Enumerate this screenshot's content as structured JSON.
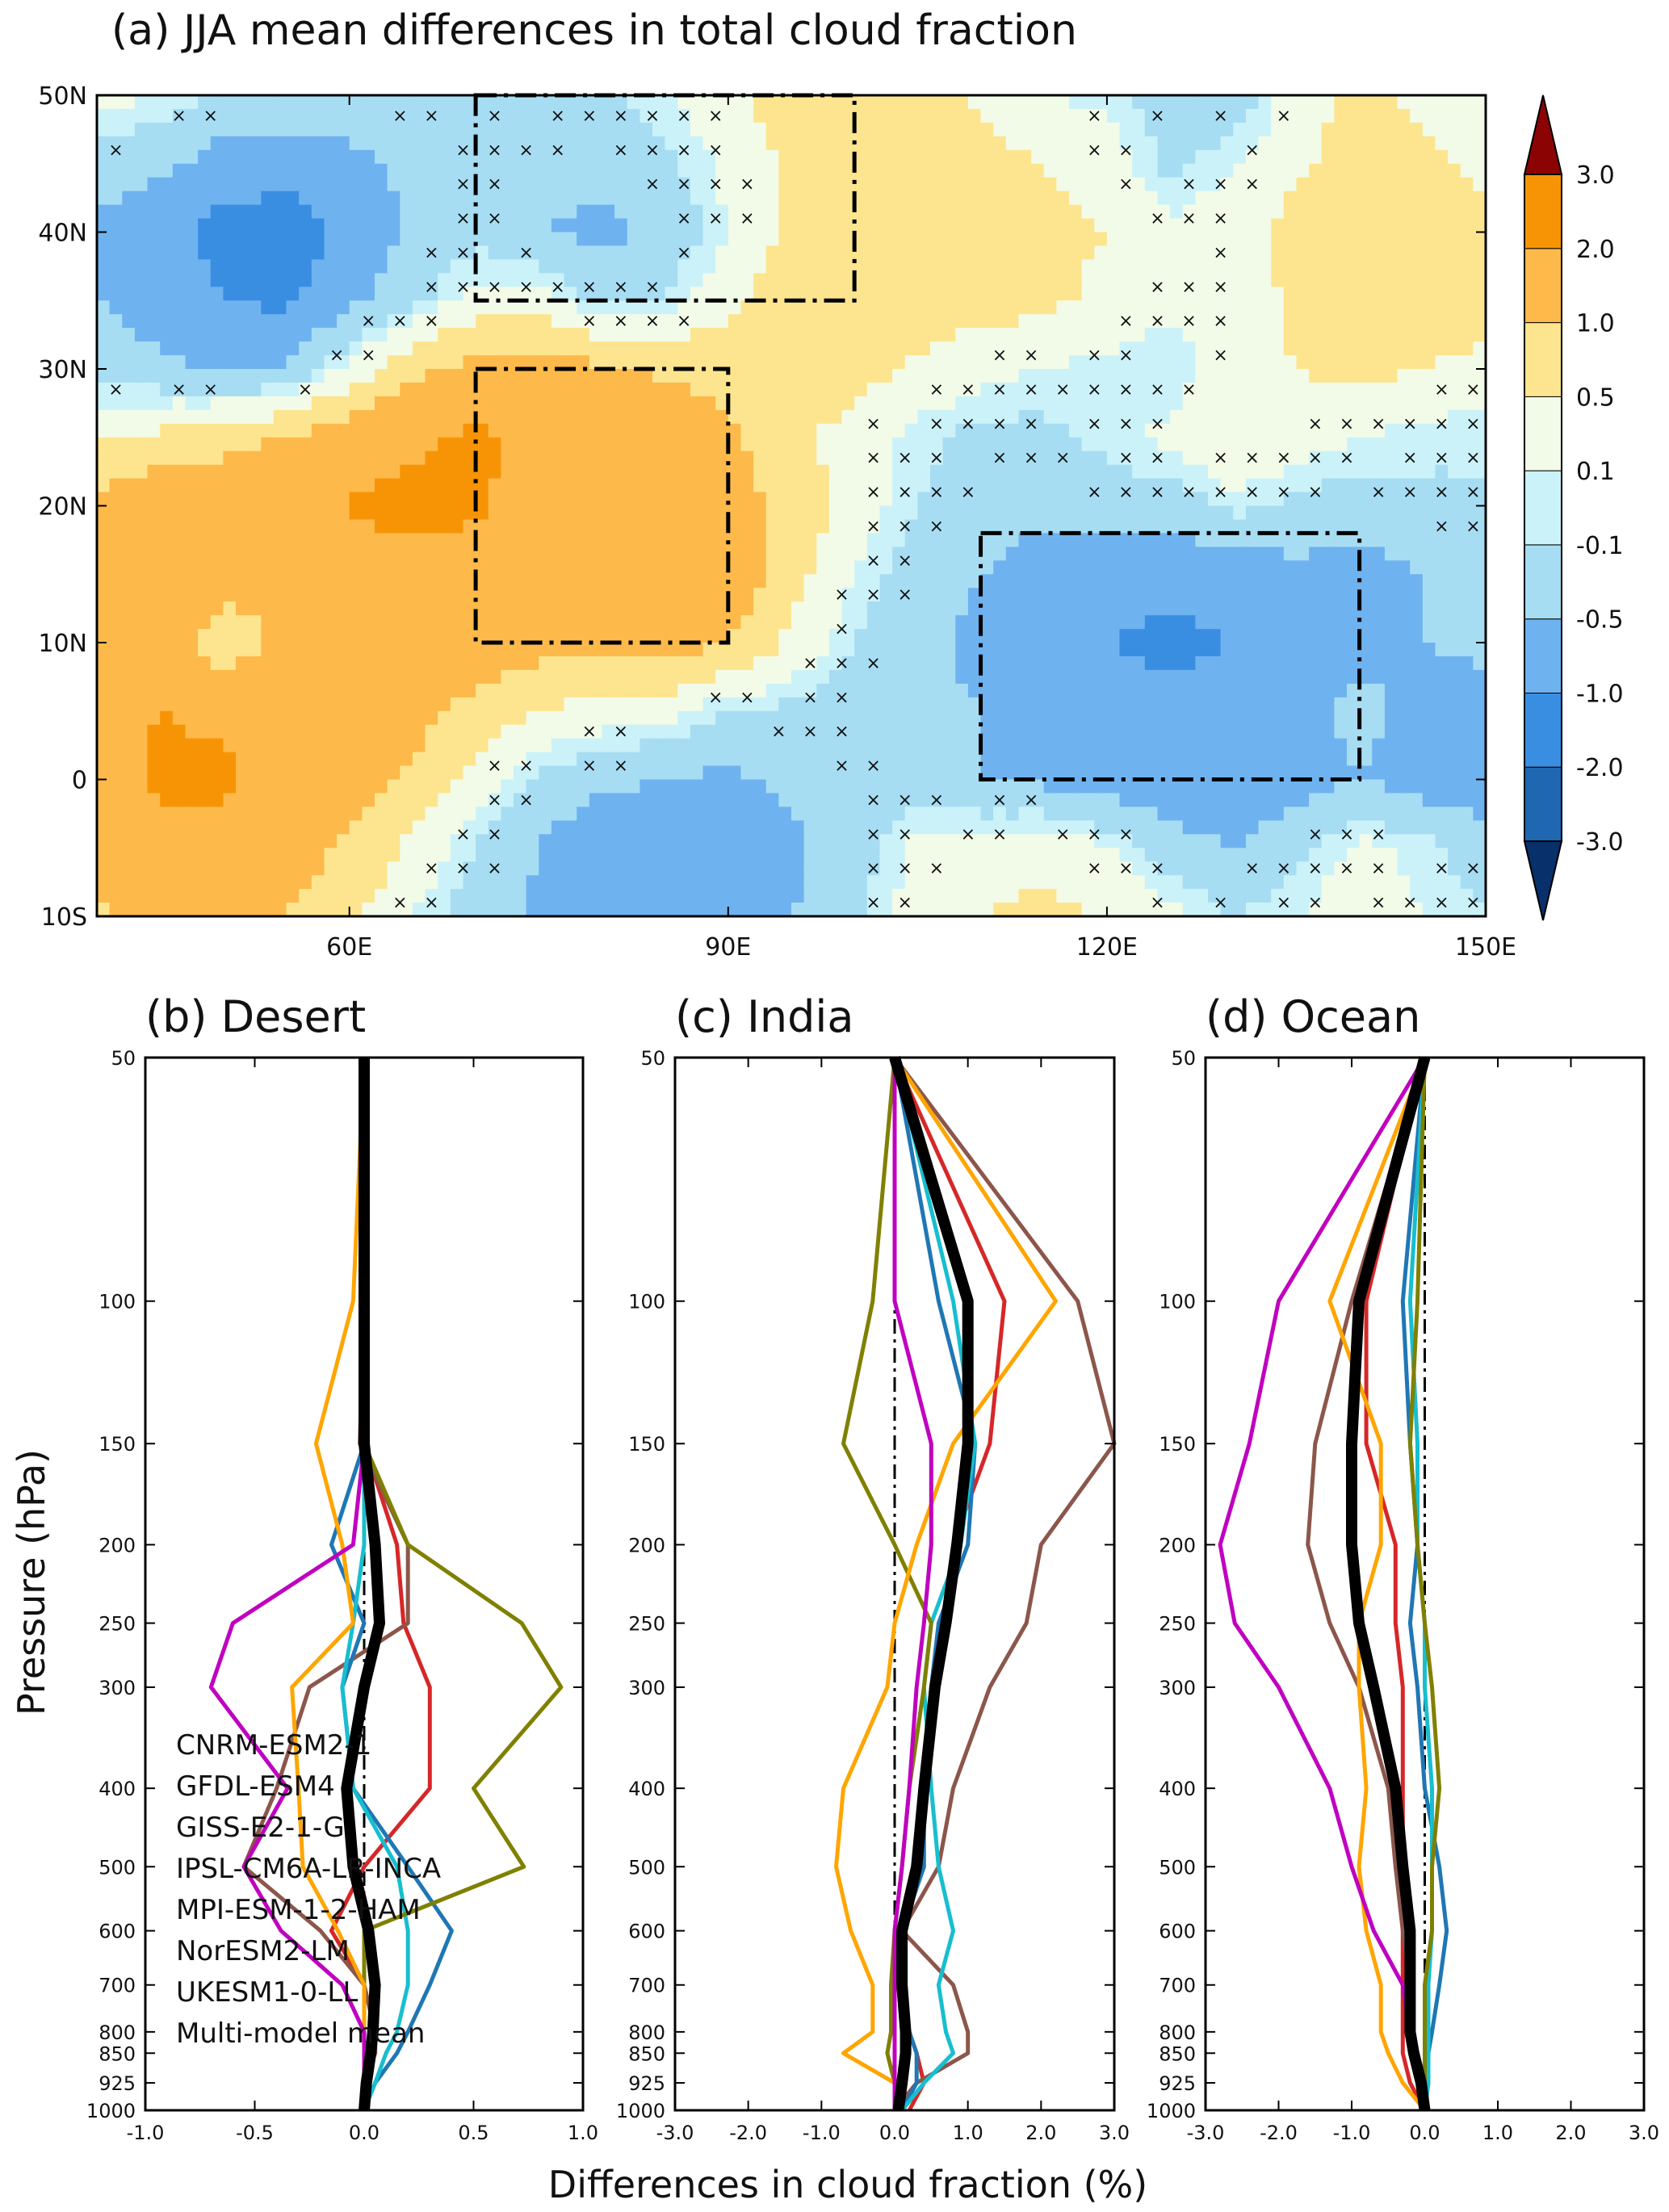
{
  "chart_data": [
    {
      "type": "heatmap",
      "title": "(a) JJA mean differences in total cloud fraction",
      "xlim": [
        40,
        150
      ],
      "ylim": [
        -10,
        50
      ],
      "xticks": [
        60,
        90,
        120,
        150
      ],
      "xtick_labels": [
        "60E",
        "90E",
        "120E",
        "150E"
      ],
      "yticks": [
        -10,
        0,
        10,
        20,
        30,
        40,
        50
      ],
      "ytick_labels": [
        "10S",
        "0",
        "10N",
        "20N",
        "30N",
        "40N",
        "50N"
      ],
      "colorbar": {
        "levels": [
          -3.0,
          -2.0,
          -1.0,
          -0.5,
          -0.1,
          0.1,
          0.5,
          1.0,
          2.0,
          3.0
        ],
        "labels": [
          "-3.0",
          "-2.0",
          "-1.0",
          "-0.5",
          "-0.1",
          "0.1",
          "0.5",
          "1.0",
          "2.0",
          "3.0"
        ],
        "colors": [
          "#08306b",
          "#1f67b1",
          "#3a8ee2",
          "#6fb2f0",
          "#a7ddf3",
          "#cbf2f8",
          "#f2fbe8",
          "#fde58f",
          "#fdb94a",
          "#f79406",
          "#fd4a05",
          "#d81a10",
          "#8c0303"
        ]
      },
      "boxes": [
        {
          "name": "Desert",
          "lon": [
            70,
            100
          ],
          "lat": [
            35,
            50
          ]
        },
        {
          "name": "India",
          "lon": [
            70,
            90
          ],
          "lat": [
            10,
            30
          ]
        },
        {
          "name": "Ocean",
          "lon": [
            110,
            140
          ],
          "lat": [
            0,
            18
          ]
        }
      ],
      "field": {
        "lon": [
          40,
          45,
          50,
          55,
          60,
          65,
          70,
          75,
          80,
          85,
          90,
          95,
          100,
          105,
          110,
          115,
          120,
          125,
          130,
          135,
          140,
          145,
          150
        ],
        "lat": [
          50,
          45,
          40,
          35,
          30,
          25,
          20,
          15,
          10,
          5,
          0,
          -5,
          -10
        ],
        "values": [
          [
            0.2,
            0.1,
            -0.2,
            -0.2,
            -0.3,
            -0.2,
            -0.1,
            -0.1,
            -0.2,
            0.1,
            0.3,
            0.8,
            1.0,
            0.7,
            0.4,
            0.1,
            0.0,
            -0.3,
            -0.4,
            0.3,
            0.6,
            0.4,
            0.3
          ],
          [
            -0.3,
            -0.4,
            -0.7,
            -0.8,
            -0.6,
            -0.4,
            -0.2,
            -0.3,
            -0.4,
            -0.2,
            0.2,
            0.6,
            0.8,
            0.9,
            0.7,
            0.5,
            0.3,
            -0.2,
            0.1,
            0.4,
            0.7,
            0.6,
            0.4
          ],
          [
            -0.6,
            -0.8,
            -1.2,
            -1.3,
            -0.9,
            -0.4,
            -0.2,
            -0.5,
            -0.6,
            -0.4,
            0.1,
            0.6,
            0.9,
            1.0,
            0.8,
            0.6,
            0.5,
            0.2,
            0.3,
            0.7,
            0.9,
            0.8,
            0.6
          ],
          [
            -0.5,
            -0.7,
            -1.0,
            -1.1,
            -0.6,
            -0.2,
            0.2,
            0.3,
            -0.2,
            -0.1,
            0.4,
            0.8,
            0.9,
            0.8,
            0.7,
            0.6,
            0.4,
            0.2,
            0.2,
            0.6,
            0.8,
            0.9,
            0.8
          ],
          [
            -0.3,
            -0.4,
            -0.6,
            -0.5,
            0.2,
            0.8,
            1.2,
            1.3,
            1.1,
            0.9,
            0.8,
            0.9,
            0.7,
            0.4,
            0.2,
            0.1,
            0.0,
            -0.1,
            0.3,
            0.5,
            0.6,
            0.5,
            0.3
          ],
          [
            0.4,
            0.6,
            0.8,
            1.0,
            1.4,
            1.8,
            2.2,
            1.8,
            1.4,
            1.5,
            1.1,
            0.6,
            0.3,
            0.0,
            -0.2,
            -0.2,
            0.0,
            0.2,
            0.5,
            0.3,
            0.1,
            0.0,
            -0.1
          ],
          [
            1.2,
            1.5,
            1.5,
            1.6,
            2.1,
            2.4,
            2.1,
            1.6,
            1.5,
            1.5,
            1.3,
            0.8,
            0.3,
            -0.1,
            -0.3,
            -0.4,
            -0.3,
            -0.3,
            0.0,
            -0.2,
            -0.3,
            -0.2,
            -0.1
          ],
          [
            1.5,
            1.6,
            1.4,
            1.2,
            1.3,
            1.6,
            1.7,
            1.3,
            1.4,
            1.6,
            1.4,
            0.7,
            0.1,
            -0.3,
            -0.5,
            -0.7,
            -0.8,
            -0.9,
            -0.8,
            -0.6,
            -0.7,
            -0.5,
            -0.4
          ],
          [
            1.6,
            1.7,
            0.5,
            1.2,
            1.5,
            1.5,
            1.4,
            1.2,
            1.2,
            1.3,
            1.0,
            0.4,
            -0.1,
            -0.4,
            -0.6,
            -0.8,
            -1.0,
            -1.1,
            -1.0,
            -0.7,
            -0.6,
            -0.5,
            -0.4
          ],
          [
            1.7,
            2.0,
            1.8,
            1.6,
            1.4,
            1.2,
            0.8,
            0.5,
            0.3,
            0.2,
            -0.1,
            -0.2,
            -0.3,
            -0.4,
            -0.5,
            -0.7,
            -0.8,
            -0.9,
            -0.8,
            -0.6,
            -0.4,
            -0.6,
            -0.7
          ],
          [
            1.5,
            2.2,
            2.2,
            1.6,
            1.3,
            0.9,
            0.3,
            -0.2,
            -0.4,
            -0.5,
            -0.6,
            -0.4,
            -0.2,
            -0.3,
            -0.5,
            -0.6,
            -0.7,
            -0.8,
            -0.9,
            -0.7,
            -0.5,
            -0.7,
            -0.8
          ],
          [
            1.3,
            1.6,
            1.6,
            1.3,
            0.9,
            0.4,
            -0.1,
            -0.5,
            -0.9,
            -1.0,
            -0.9,
            -0.6,
            -0.3,
            0.2,
            0.3,
            0.4,
            0.1,
            -0.3,
            -0.5,
            -0.2,
            0.2,
            0.0,
            -0.3
          ],
          [
            0.9,
            1.1,
            1.2,
            1.0,
            0.6,
            0.1,
            -0.3,
            -0.6,
            -0.8,
            -0.8,
            -0.7,
            -0.5,
            -0.2,
            0.3,
            0.5,
            0.6,
            0.5,
            0.2,
            -0.1,
            0.1,
            0.3,
            0.1,
            -0.1
          ]
        ]
      }
    },
    {
      "type": "line",
      "title": "(b) Desert",
      "xlim": [
        -1.0,
        1.0
      ],
      "xticks": [
        "-1.0",
        "-0.5",
        "0.0",
        "0.5",
        "1.0"
      ],
      "ylabel": "Pressure (hPa)",
      "ylim": [
        1000,
        50
      ],
      "y": [
        50,
        100,
        150,
        200,
        250,
        300,
        400,
        500,
        600,
        700,
        800,
        850,
        925,
        1000
      ],
      "series": [
        {
          "name": "CNRM-ESM2-1",
          "color": "#d62728",
          "values": [
            0.0,
            0.0,
            0.0,
            0.15,
            0.18,
            0.3,
            0.3,
            0.0,
            -0.15,
            0.0,
            0.05,
            0.05,
            0.0,
            0.0
          ]
        },
        {
          "name": "GFDL-ESM4",
          "color": "#8c564b",
          "values": [
            0.0,
            0.0,
            -0.02,
            0.2,
            0.2,
            -0.25,
            -0.4,
            -0.55,
            -0.2,
            0.0,
            0.05,
            0.05,
            0.0,
            0.0
          ]
        },
        {
          "name": "GISS-E2-1-G",
          "color": "#1f77b4",
          "values": [
            0.0,
            0.0,
            0.0,
            -0.15,
            0.0,
            -0.1,
            -0.05,
            0.2,
            0.4,
            0.3,
            0.2,
            0.15,
            0.05,
            0.0
          ]
        },
        {
          "name": "IPSL-CM6A-LR-INCA",
          "color": "#17becf",
          "values": [
            0.0,
            0.0,
            0.0,
            0.0,
            -0.05,
            -0.1,
            -0.05,
            0.15,
            0.2,
            0.2,
            0.15,
            0.1,
            0.05,
            0.0
          ]
        },
        {
          "name": "MPI-ESM-1-2-HAM",
          "color": "#808000",
          "values": [
            0.0,
            0.0,
            0.0,
            0.2,
            0.72,
            0.9,
            0.5,
            0.73,
            0.0,
            0.0,
            0.0,
            0.0,
            0.0,
            0.0
          ]
        },
        {
          "name": "NorESM2-LM",
          "color": "#ffa500",
          "values": [
            0.0,
            -0.05,
            -0.22,
            -0.1,
            -0.05,
            -0.33,
            -0.3,
            -0.28,
            -0.12,
            0.0,
            0.0,
            0.0,
            0.0,
            0.0
          ]
        },
        {
          "name": "UKESM1-0-LL",
          "color": "#c000c0",
          "values": [
            0.0,
            0.0,
            0.0,
            -0.05,
            -0.6,
            -0.7,
            -0.35,
            -0.55,
            -0.38,
            -0.1,
            0.0,
            0.0,
            0.0,
            0.0
          ]
        },
        {
          "name": "Multi-model mean",
          "color": "#000000",
          "values": [
            0.0,
            0.0,
            0.0,
            0.05,
            0.07,
            0.0,
            -0.08,
            -0.05,
            0.02,
            0.05,
            0.04,
            0.03,
            0.01,
            0.0
          ]
        }
      ]
    },
    {
      "type": "line",
      "title": "(c) India",
      "xlim": [
        -3.0,
        3.0
      ],
      "xticks": [
        "-3.0",
        "-2.0",
        "-1.0",
        "0.0",
        "1.0",
        "2.0",
        "3.0"
      ],
      "ylim": [
        1000,
        50
      ],
      "y": [
        50,
        100,
        150,
        200,
        250,
        300,
        400,
        500,
        600,
        700,
        800,
        850,
        925,
        1000
      ],
      "series": [
        {
          "name": "CNRM-ESM2-1",
          "color": "#d62728",
          "values": [
            0.0,
            1.5,
            1.3,
            0.8,
            0.7,
            0.5,
            0.4,
            0.3,
            0.1,
            0.05,
            0.2,
            0.3,
            0.4,
            0.2
          ]
        },
        {
          "name": "GFDL-ESM4",
          "color": "#8c564b",
          "values": [
            0.0,
            2.5,
            3.0,
            2.0,
            1.8,
            1.3,
            0.8,
            0.6,
            0.1,
            0.8,
            1.0,
            1.0,
            0.3,
            0.0
          ]
        },
        {
          "name": "GISS-E2-1-G",
          "color": "#1f77b4",
          "values": [
            0.0,
            0.6,
            1.1,
            1.0,
            0.6,
            0.5,
            0.4,
            0.4,
            0.1,
            0.05,
            0.2,
            0.3,
            0.3,
            0.1
          ]
        },
        {
          "name": "IPSL-CM6A-LR-INCA",
          "color": "#17becf",
          "values": [
            0.0,
            0.8,
            1.1,
            0.9,
            0.5,
            0.4,
            0.5,
            0.6,
            0.8,
            0.6,
            0.7,
            0.8,
            0.4,
            0.1
          ]
        },
        {
          "name": "MPI-ESM-1-2-HAM",
          "color": "#808000",
          "values": [
            0.0,
            -0.3,
            -0.7,
            0.0,
            0.5,
            0.4,
            0.2,
            0.1,
            0.0,
            -0.05,
            -0.05,
            -0.1,
            0.0,
            0.0
          ]
        },
        {
          "name": "NorESM2-LM",
          "color": "#ffa500",
          "values": [
            0.0,
            2.2,
            0.8,
            0.3,
            0.0,
            -0.1,
            -0.7,
            -0.8,
            -0.6,
            -0.3,
            -0.3,
            -0.7,
            0.0,
            0.0
          ]
        },
        {
          "name": "UKESM1-0-LL",
          "color": "#c000c0",
          "values": [
            0.0,
            0.0,
            0.5,
            0.5,
            0.4,
            0.3,
            0.2,
            0.1,
            0.0,
            0.0,
            0.0,
            0.0,
            0.0,
            0.0
          ]
        },
        {
          "name": "Multi-model mean",
          "color": "#000000",
          "values": [
            0.0,
            1.0,
            1.0,
            0.85,
            0.7,
            0.55,
            0.4,
            0.3,
            0.1,
            0.1,
            0.15,
            0.15,
            0.1,
            0.05
          ]
        }
      ]
    },
    {
      "type": "line",
      "title": "(d) Ocean",
      "xlim": [
        -3.0,
        3.0
      ],
      "xticks": [
        "-3.0",
        "-2.0",
        "-1.0",
        "0.0",
        "1.0",
        "2.0",
        "3.0"
      ],
      "ylim": [
        1000,
        50
      ],
      "y": [
        50,
        100,
        150,
        200,
        250,
        300,
        400,
        500,
        600,
        700,
        800,
        850,
        925,
        1000
      ],
      "series": [
        {
          "name": "CNRM-ESM2-1",
          "color": "#d62728",
          "values": [
            0.0,
            -0.8,
            -0.8,
            -0.4,
            -0.4,
            -0.3,
            -0.3,
            -0.3,
            -0.3,
            -0.3,
            -0.3,
            -0.3,
            -0.2,
            0.0
          ]
        },
        {
          "name": "GFDL-ESM4",
          "color": "#8c564b",
          "values": [
            0.0,
            -1.0,
            -1.5,
            -1.6,
            -1.3,
            -0.9,
            -0.5,
            -0.4,
            -0.3,
            -0.2,
            -0.2,
            -0.1,
            -0.05,
            0.0
          ]
        },
        {
          "name": "GISS-E2-1-G",
          "color": "#1f77b4",
          "values": [
            0.0,
            -0.3,
            -0.2,
            -0.1,
            -0.2,
            -0.1,
            0.0,
            0.2,
            0.3,
            0.2,
            0.1,
            0.05,
            0.05,
            0.0
          ]
        },
        {
          "name": "IPSL-CM6A-LR-INCA",
          "color": "#17becf",
          "values": [
            0.0,
            -0.2,
            -0.1,
            -0.1,
            0.0,
            0.0,
            0.1,
            0.1,
            0.1,
            0.05,
            0.05,
            0.05,
            0.05,
            0.0
          ]
        },
        {
          "name": "MPI-ESM-1-2-HAM",
          "color": "#808000",
          "values": [
            0.0,
            -0.1,
            -0.2,
            -0.1,
            0.0,
            0.1,
            0.2,
            0.1,
            0.1,
            0.0,
            0.0,
            0.0,
            0.0,
            0.0
          ]
        },
        {
          "name": "NorESM2-LM",
          "color": "#ffa500",
          "values": [
            0.0,
            -1.3,
            -0.6,
            -0.6,
            -0.9,
            -0.9,
            -0.8,
            -0.9,
            -0.8,
            -0.6,
            -0.6,
            -0.5,
            -0.3,
            0.0
          ]
        },
        {
          "name": "UKESM1-0-LL",
          "color": "#c000c0",
          "values": [
            0.0,
            -2.0,
            -2.4,
            -2.8,
            -2.6,
            -2.0,
            -1.3,
            -1.0,
            -0.7,
            -0.3,
            -0.2,
            -0.1,
            0.0,
            0.0
          ]
        },
        {
          "name": "Multi-model mean",
          "color": "#000000",
          "values": [
            0.0,
            -0.9,
            -1.0,
            -1.0,
            -0.9,
            -0.7,
            -0.4,
            -0.3,
            -0.2,
            -0.2,
            -0.2,
            -0.15,
            -0.05,
            0.0
          ]
        }
      ]
    }
  ],
  "common": {
    "xlabel": "Differences in cloud fraction (%)",
    "yticks": [
      50,
      100,
      150,
      200,
      250,
      300,
      400,
      500,
      600,
      700,
      800,
      850,
      925,
      1000
    ]
  }
}
